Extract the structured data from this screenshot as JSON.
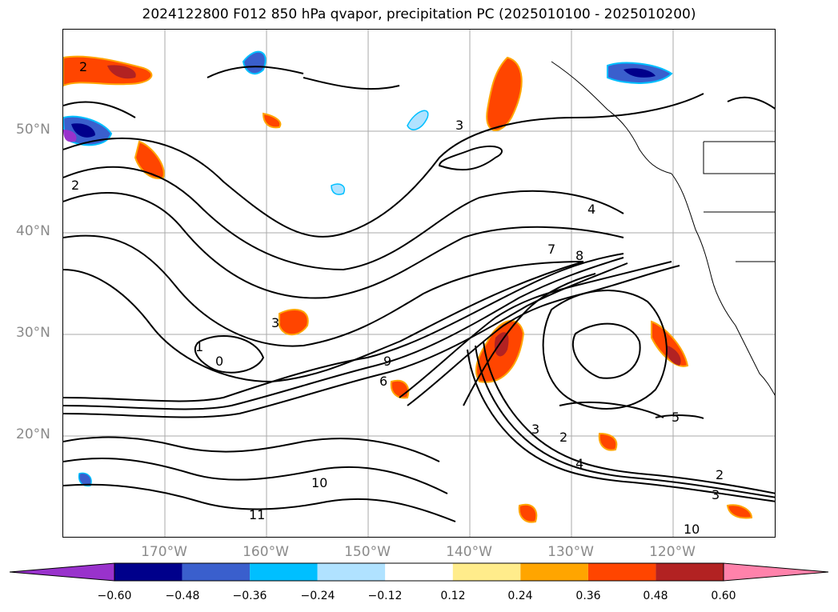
{
  "title": "2024122800 F012 850 hPa qvapor, precipitation PC (2025010100 - 2025010200)",
  "lat_labels": [
    "50°N",
    "40°N",
    "30°N",
    "20°N"
  ],
  "lon_labels": [
    "170°W",
    "160°W",
    "150°W",
    "140°W",
    "130°W",
    "120°W"
  ],
  "colorbar": {
    "colors": [
      "#9932cc",
      "#00008b",
      "#3a5fcd",
      "#00bfff",
      "#b0e2ff",
      "#ffffff",
      "#ffec8b",
      "#ffa500",
      "#ff4500",
      "#b22222",
      "#ff82ab"
    ],
    "ticks": [
      "−0.60",
      "−0.48",
      "−0.36",
      "−0.24",
      "−0.12",
      "0.12",
      "0.24",
      "0.36",
      "0.48",
      "0.60"
    ]
  },
  "contour_labels": [
    "2",
    "3",
    "4",
    "5",
    "6",
    "7",
    "8",
    "9",
    "10",
    "11",
    "1",
    "0"
  ]
}
